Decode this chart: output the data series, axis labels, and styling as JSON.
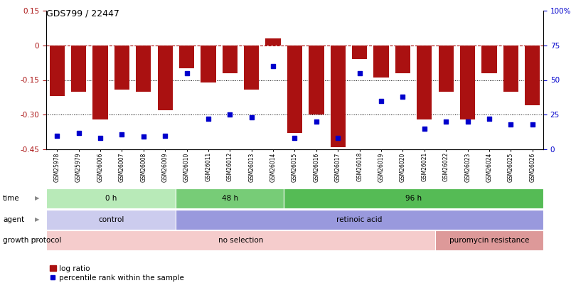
{
  "title": "GDS799 / 22447",
  "samples": [
    "GSM25978",
    "GSM25979",
    "GSM26006",
    "GSM26007",
    "GSM26008",
    "GSM26009",
    "GSM26010",
    "GSM26011",
    "GSM26012",
    "GSM26013",
    "GSM26014",
    "GSM26015",
    "GSM26016",
    "GSM26017",
    "GSM26018",
    "GSM26019",
    "GSM26020",
    "GSM26021",
    "GSM26022",
    "GSM26023",
    "GSM26024",
    "GSM26025",
    "GSM26026"
  ],
  "log_ratio": [
    -0.22,
    -0.2,
    -0.32,
    -0.19,
    -0.2,
    -0.28,
    -0.1,
    -0.16,
    -0.12,
    -0.19,
    0.03,
    -0.38,
    -0.3,
    -0.44,
    -0.06,
    -0.14,
    -0.12,
    -0.32,
    -0.2,
    -0.32,
    -0.12,
    -0.2,
    -0.26
  ],
  "percentile_rank": [
    10,
    12,
    8,
    11,
    9,
    10,
    55,
    22,
    25,
    23,
    60,
    8,
    20,
    8,
    55,
    35,
    38,
    15,
    20,
    20,
    22,
    18,
    18
  ],
  "ylim_left": [
    -0.45,
    0.15
  ],
  "ylim_right": [
    0,
    100
  ],
  "yticks_left": [
    0.15,
    0,
    -0.15,
    -0.3,
    -0.45
  ],
  "ytick_labels_left": [
    "0.15",
    "0",
    "-0.15",
    "-0.30",
    "-0.45"
  ],
  "yticks_right": [
    100,
    75,
    50,
    25,
    0
  ],
  "ytick_labels_right": [
    "100%",
    "75",
    "50",
    "25",
    "0"
  ],
  "bar_color": "#aa1111",
  "dot_color": "#0000cc",
  "dotted_lines": [
    -0.15,
    -0.3
  ],
  "time_groups": [
    {
      "label": "0 h",
      "start": 0,
      "end": 6,
      "color": "#b8eab8"
    },
    {
      "label": "48 h",
      "start": 6,
      "end": 11,
      "color": "#77cc77"
    },
    {
      "label": "96 h",
      "start": 11,
      "end": 23,
      "color": "#55bb55"
    }
  ],
  "agent_groups": [
    {
      "label": "control",
      "start": 0,
      "end": 6,
      "color": "#ccccee"
    },
    {
      "label": "retinoic acid",
      "start": 6,
      "end": 23,
      "color": "#9999dd"
    }
  ],
  "growth_groups": [
    {
      "label": "no selection",
      "start": 0,
      "end": 18,
      "color": "#f5cccc"
    },
    {
      "label": "puromycin resistance",
      "start": 18,
      "end": 23,
      "color": "#dd9999"
    }
  ],
  "legend_bar_label": "log ratio",
  "legend_dot_label": "percentile rank within the sample",
  "background_color": "#ffffff"
}
